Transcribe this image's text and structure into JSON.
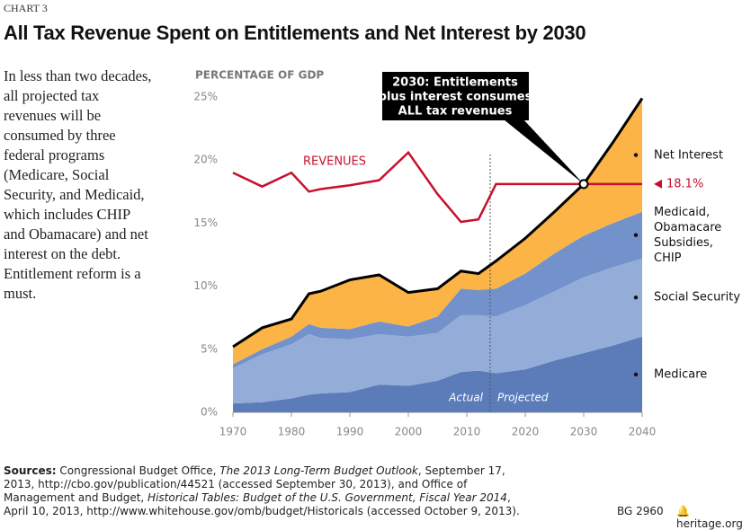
{
  "header": {
    "kicker": "CHART 3",
    "title": "All Tax Revenue Spent on Entitlements and Net Interest by 2030"
  },
  "sidebar": "In less than two decades, all projected tax revenues will be consumed by three federal programs (Medicare, Social Security, and Medicaid, which includes CHIP and Obamacare) and net interest on the debt. Entitlement reform is a must.",
  "sources": {
    "label": "Sources:",
    "parts": [
      {
        "text": "Congressional Budget Office, ",
        "italic": false
      },
      {
        "text": "The 2013 Long-Term Budget Outlook",
        "italic": true
      },
      {
        "text": ", September 17, 2013, http://cbo.gov/publication/44521 (accessed September 30, 2013), and Office of Management and Budget, ",
        "italic": false
      },
      {
        "text": "Historical Tables: Budget of the U.S. Government, Fiscal Year 2014",
        "italic": true
      },
      {
        "text": ", April 10, 2013, http://www.whitehouse.gov/omb/budget/Historicals (accessed October 9, 2013).",
        "italic": false
      }
    ]
  },
  "footer": {
    "code": "BG 2960",
    "site": "heritage.org"
  },
  "chart_data": {
    "type": "stacked-area",
    "y_label": "PERCENTAGE OF GDP",
    "x": [
      1970,
      1975,
      1980,
      1983,
      1985,
      1990,
      1995,
      2000,
      2005,
      2009,
      2012,
      2015,
      2020,
      2025,
      2030,
      2035,
      2040
    ],
    "series": [
      {
        "name": "Medicare",
        "color": "#5b7cb9",
        "values": [
          0.7,
          0.8,
          1.1,
          1.4,
          1.5,
          1.6,
          2.2,
          2.1,
          2.5,
          3.2,
          3.3,
          3.1,
          3.4,
          4.1,
          4.7,
          5.3,
          6.0
        ]
      },
      {
        "name": "Social Security",
        "color": "#93acd8",
        "values": [
          2.8,
          3.8,
          4.3,
          4.8,
          4.4,
          4.2,
          4.0,
          3.9,
          3.8,
          4.5,
          4.4,
          4.5,
          5.1,
          5.5,
          6.0,
          6.2,
          6.2
        ]
      },
      {
        "name": "Medicaid, Obamacare Subsidies, CHIP",
        "color": "#7392cb",
        "values": [
          0.3,
          0.4,
          0.6,
          0.8,
          0.8,
          0.8,
          1.0,
          0.8,
          1.3,
          2.1,
          2.0,
          2.2,
          2.5,
          3.0,
          3.3,
          3.5,
          3.7
        ]
      },
      {
        "name": "Net Interest",
        "color": "#fbb445",
        "values": [
          1.4,
          1.7,
          1.4,
          2.4,
          2.9,
          3.9,
          3.7,
          2.7,
          2.2,
          1.4,
          1.3,
          2.2,
          2.8,
          3.3,
          4.1,
          6.4,
          9.0
        ]
      }
    ],
    "revenues": {
      "name": "REVENUES",
      "color": "#c8102e",
      "values": [
        19.0,
        17.9,
        19.0,
        17.5,
        17.7,
        18.0,
        18.4,
        20.6,
        17.3,
        15.1,
        15.3,
        18.1,
        18.1,
        18.1,
        18.1,
        18.1,
        18.1
      ],
      "value_labels": [
        null,
        null,
        null,
        null,
        null,
        null,
        null,
        null,
        null,
        null,
        null,
        null,
        null,
        null,
        null,
        null,
        "18.1%"
      ]
    },
    "annotation": {
      "lines": [
        "2030: Entitlements",
        "plus interest consumes",
        "ALL tax revenues"
      ],
      "x": 2030,
      "y": 18.1
    },
    "divider": {
      "x": 2014,
      "left": "Actual",
      "right": "Projected"
    },
    "xlim": [
      1970,
      2040
    ],
    "xticks": [
      1970,
      1980,
      1990,
      2000,
      2010,
      2020,
      2030,
      2040
    ],
    "ylim": [
      0,
      25
    ],
    "yticks": [
      {
        "value": 0,
        "label": "0%"
      },
      {
        "value": 5,
        "label": "5%"
      },
      {
        "value": 10,
        "label": "10%"
      },
      {
        "value": 15,
        "label": "15%"
      },
      {
        "value": 20,
        "label": "20%"
      },
      {
        "value": 25,
        "label": "25%"
      }
    ],
    "grid": false
  }
}
